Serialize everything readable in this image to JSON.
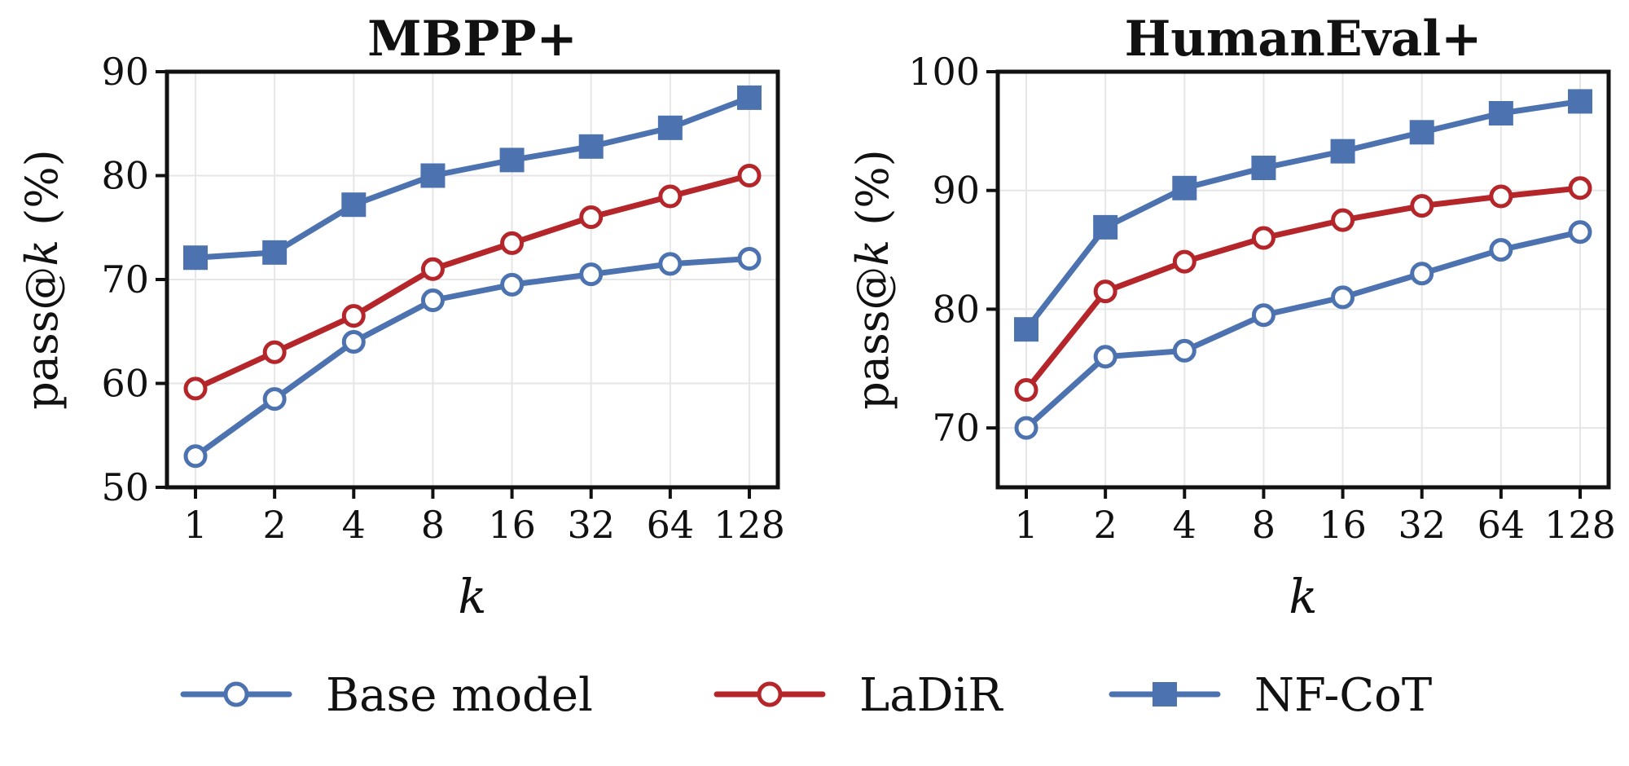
{
  "chart_data": [
    {
      "type": "line",
      "title": "MBPP+",
      "xlabel": "k",
      "ylabel_prefix": "pass@",
      "ylabel_var": "k",
      "ylabel_suffix": " (%)",
      "categories": [
        "1",
        "2",
        "4",
        "8",
        "16",
        "32",
        "64",
        "128"
      ],
      "ylim": [
        50,
        90
      ],
      "yticks": [
        50,
        60,
        70,
        80,
        90
      ],
      "grid": true,
      "series": [
        {
          "name": "Base model",
          "values": [
            53,
            58.5,
            64,
            68,
            69.5,
            70.5,
            71.5,
            72
          ]
        },
        {
          "name": "LaDiR",
          "values": [
            59.5,
            63,
            66.5,
            71,
            73.5,
            76,
            78,
            80
          ]
        },
        {
          "name": "NF-CoT",
          "values": [
            72.1,
            72.6,
            77.2,
            80,
            81.5,
            82.8,
            84.6,
            87.5
          ]
        }
      ]
    },
    {
      "type": "line",
      "title": "HumanEval+",
      "xlabel": "k",
      "ylabel_prefix": "pass@",
      "ylabel_var": "k",
      "ylabel_suffix": " (%)",
      "categories": [
        "1",
        "2",
        "4",
        "8",
        "16",
        "32",
        "64",
        "128"
      ],
      "ylim": [
        65,
        100
      ],
      "yticks": [
        70,
        80,
        90,
        100
      ],
      "grid": true,
      "series": [
        {
          "name": "Base model",
          "values": [
            70,
            76,
            76.5,
            79.5,
            81,
            83,
            85,
            86.5
          ]
        },
        {
          "name": "LaDiR",
          "values": [
            73.2,
            81.5,
            84,
            86,
            87.5,
            88.7,
            89.5,
            90.2
          ]
        },
        {
          "name": "NF-CoT",
          "values": [
            78.3,
            86.9,
            90.2,
            91.9,
            93.3,
            94.9,
            96.5,
            97.5
          ]
        }
      ]
    }
  ],
  "legend": {
    "placement": "bottom-center",
    "entries": [
      {
        "name": "Base model",
        "color": "#4c72b0",
        "marker": "hollow-circle"
      },
      {
        "name": "LaDiR",
        "color": "#b5262b",
        "marker": "hollow-circle"
      },
      {
        "name": "NF-CoT",
        "color": "#4c72b0",
        "marker": "filled-square"
      }
    ]
  },
  "colors": {
    "base": "#4c72b0",
    "ladir": "#b5262b",
    "nfcot": "#4c72b0",
    "grid": "#e6e6e6",
    "axis": "#111111"
  }
}
